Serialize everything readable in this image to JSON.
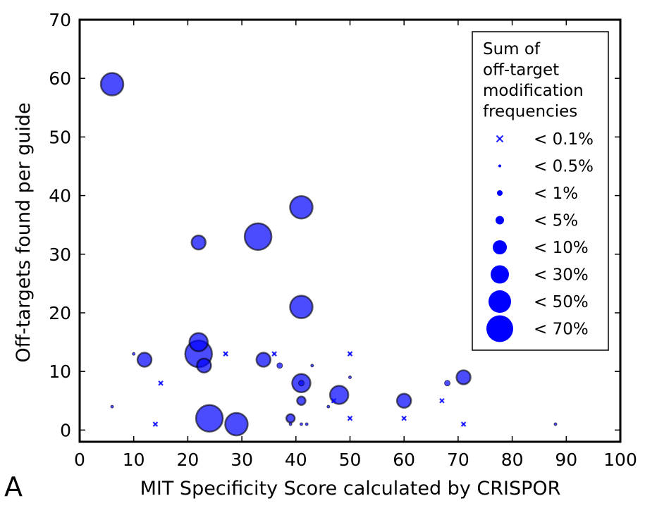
{
  "panel_label": "A",
  "chart_data": {
    "type": "scatter",
    "xlabel": "MIT Specificity Score calculated by CRISPOR",
    "ylabel": "Off-targets found per guide",
    "xlim": [
      0,
      100
    ],
    "ylim": [
      -2,
      70
    ],
    "xticks": [
      0,
      10,
      20,
      30,
      40,
      50,
      60,
      70,
      80,
      90,
      100
    ],
    "yticks": [
      0,
      10,
      20,
      30,
      40,
      50,
      60,
      70
    ],
    "grid": false,
    "legend_position": "top-right",
    "point_color": "#0000ff",
    "legend": {
      "title": "Sum of\noff-target\nmodification\nfrequencies",
      "entries": [
        {
          "label": "< 0.1%",
          "marker": "x"
        },
        {
          "label": "< 0.5%",
          "marker": "dot",
          "size": 1
        },
        {
          "label": "< 1%",
          "marker": "dot",
          "size": 2
        },
        {
          "label": "< 5%",
          "marker": "dot",
          "size": 3
        },
        {
          "label": "< 10%",
          "marker": "dot",
          "size": 4
        },
        {
          "label": "< 30%",
          "marker": "dot",
          "size": 5
        },
        {
          "label": "< 50%",
          "marker": "dot",
          "size": 6
        },
        {
          "label": "< 70%",
          "marker": "dot",
          "size": 7
        }
      ]
    },
    "points": [
      {
        "x": 6,
        "y": 59,
        "size": 6
      },
      {
        "x": 41,
        "y": 38,
        "size": 6
      },
      {
        "x": 33,
        "y": 33,
        "size": 7
      },
      {
        "x": 22,
        "y": 32,
        "size": 4
      },
      {
        "x": 41,
        "y": 21,
        "size": 6
      },
      {
        "x": 22,
        "y": 15,
        "size": 5
      },
      {
        "x": 22,
        "y": 13,
        "size": 7
      },
      {
        "x": 23,
        "y": 11,
        "size": 4
      },
      {
        "x": 12,
        "y": 12,
        "size": 4
      },
      {
        "x": 34,
        "y": 12,
        "size": 4
      },
      {
        "x": 24,
        "y": 2,
        "size": 7
      },
      {
        "x": 29,
        "y": 1,
        "size": 6
      },
      {
        "x": 41,
        "y": 8,
        "size": 5
      },
      {
        "x": 41,
        "y": 8,
        "size": 2
      },
      {
        "x": 48,
        "y": 6,
        "size": 5
      },
      {
        "x": 60,
        "y": 5,
        "size": 4
      },
      {
        "x": 71,
        "y": 9,
        "size": 4
      },
      {
        "x": 41,
        "y": 5,
        "size": 3
      },
      {
        "x": 39,
        "y": 2,
        "size": 3
      },
      {
        "x": 10,
        "y": 13,
        "size": 1
      },
      {
        "x": 6,
        "y": 4,
        "size": 1
      },
      {
        "x": 37,
        "y": 11,
        "size": 2
      },
      {
        "x": 43,
        "y": 11,
        "size": 1
      },
      {
        "x": 50,
        "y": 9,
        "size": 1
      },
      {
        "x": 68,
        "y": 8,
        "size": 2
      },
      {
        "x": 46,
        "y": 4,
        "size": 1
      },
      {
        "x": 41,
        "y": 1,
        "size": 1
      },
      {
        "x": 42,
        "y": 1,
        "size": 1
      },
      {
        "x": 39,
        "y": 1,
        "size": 1
      },
      {
        "x": 88,
        "y": 1,
        "size": 1
      },
      {
        "x": 15,
        "y": 8,
        "size": 0
      },
      {
        "x": 14,
        "y": 1,
        "size": 0
      },
      {
        "x": 27,
        "y": 13,
        "size": 0
      },
      {
        "x": 36,
        "y": 13,
        "size": 0
      },
      {
        "x": 50,
        "y": 13,
        "size": 0
      },
      {
        "x": 50,
        "y": 2,
        "size": 0
      },
      {
        "x": 47,
        "y": 5,
        "size": 0
      },
      {
        "x": 60,
        "y": 2,
        "size": 0
      },
      {
        "x": 67,
        "y": 5,
        "size": 0
      },
      {
        "x": 71,
        "y": 1,
        "size": 0
      }
    ]
  }
}
